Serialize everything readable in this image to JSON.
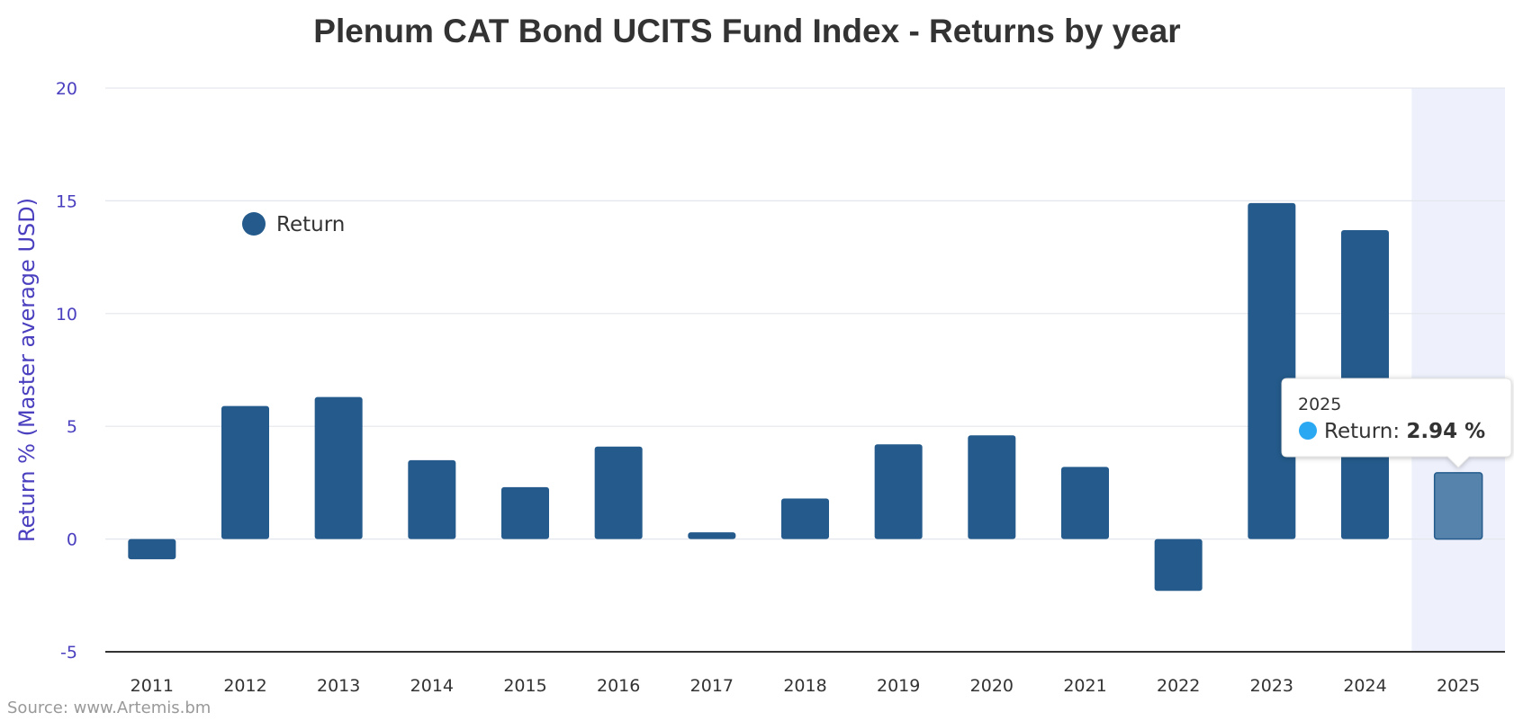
{
  "colors": {
    "bar": "#245b8c",
    "bar_hover": "#5583ab",
    "highlight_band": "#eef1fc",
    "axis_text": "#4a3fbf",
    "grid": "#e3e6ec",
    "tooltip_dot": "#2aa8f2"
  },
  "chart_data": {
    "type": "bar",
    "title": "Plenum CAT Bond UCITS Fund Index - Returns by year",
    "ylabel": "Return % (Master average USD)",
    "xlabel": "",
    "ylim": [
      -5,
      20
    ],
    "yticks": [
      20,
      15,
      10,
      5,
      0,
      -5
    ],
    "grid": true,
    "legend_position": "top-left",
    "categories": [
      "2011",
      "2012",
      "2013",
      "2014",
      "2015",
      "2016",
      "2017",
      "2018",
      "2019",
      "2020",
      "2021",
      "2022",
      "2023",
      "2024",
      "2025"
    ],
    "series": [
      {
        "name": "Return",
        "values": [
          -0.9,
          5.9,
          6.3,
          3.5,
          2.3,
          4.1,
          0.3,
          1.8,
          4.2,
          4.6,
          3.2,
          -2.3,
          14.9,
          13.7,
          2.94
        ]
      }
    ],
    "highlighted_category": "2025",
    "tooltip": {
      "category": "2025",
      "series_label": "Return: ",
      "value_text": "2.94 %"
    },
    "source": "Source: www.Artemis.bm"
  }
}
